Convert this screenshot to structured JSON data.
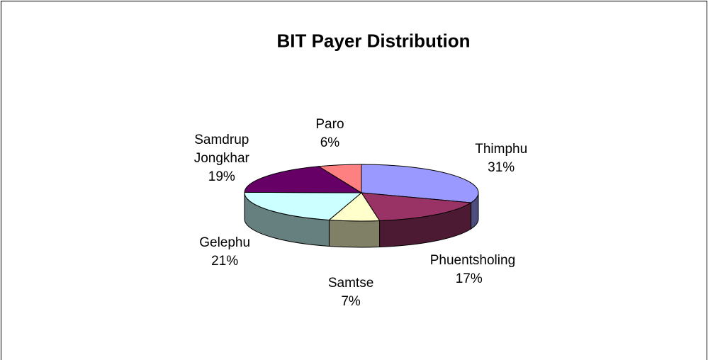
{
  "chart_data": {
    "type": "pie3d",
    "title": "BIT Payer Distribution",
    "categories": [
      "Thimphu",
      "Phuentsholing",
      "Samtse",
      "Gelephu",
      "Samdrup Jongkhar",
      "Paro"
    ],
    "values": [
      31,
      17,
      7,
      21,
      19,
      6
    ],
    "value_labels": [
      "31%",
      "17%",
      "7%",
      "21%",
      "19%",
      "6%"
    ],
    "colors": [
      "#9999ff",
      "#993366",
      "#ffffcc",
      "#ccffff",
      "#660066",
      "#ff8080"
    ]
  }
}
